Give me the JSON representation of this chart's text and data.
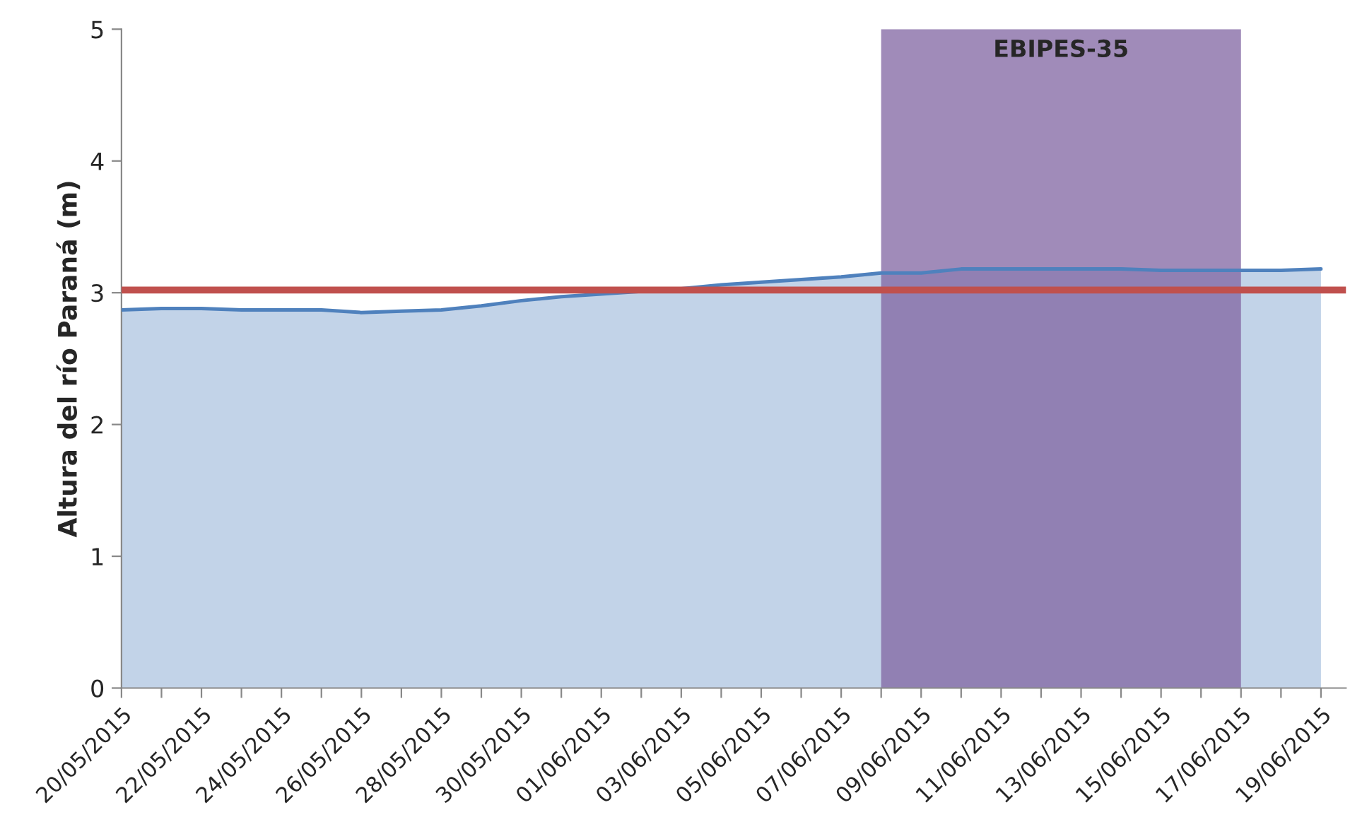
{
  "chart_data": {
    "type": "area",
    "ylabel": "Altura del río Paraná (m)",
    "x": [
      "2015-05-20",
      "2015-05-21",
      "2015-05-22",
      "2015-05-23",
      "2015-05-24",
      "2015-05-25",
      "2015-05-26",
      "2015-05-27",
      "2015-05-28",
      "2015-05-29",
      "2015-05-30",
      "2015-05-31",
      "2015-06-01",
      "2015-06-02",
      "2015-06-03",
      "2015-06-04",
      "2015-06-05",
      "2015-06-06",
      "2015-06-07",
      "2015-06-08",
      "2015-06-09",
      "2015-06-10",
      "2015-06-11",
      "2015-06-12",
      "2015-06-13",
      "2015-06-14",
      "2015-06-15",
      "2015-06-16",
      "2015-06-17",
      "2015-06-18",
      "2015-06-19"
    ],
    "series": [
      {
        "color": "#4f81bd",
        "values": [
          2.87,
          2.88,
          2.88,
          2.87,
          2.87,
          2.87,
          2.85,
          2.86,
          2.87,
          2.9,
          2.94,
          2.97,
          2.99,
          3.01,
          3.03,
          3.06,
          3.08,
          3.1,
          3.12,
          3.15,
          3.15,
          3.18,
          3.18,
          3.18,
          3.18,
          3.18,
          3.17,
          3.17,
          3.17,
          3.17,
          3.18
        ]
      }
    ],
    "xlim": [
      "2015-05-20",
      "2015-06-19T15:00"
    ],
    "xticks": [
      {
        "value": "2015-05-20",
        "label": "20/05/2015"
      },
      {
        "value": "2015-05-21",
        "label": null
      },
      {
        "value": "2015-05-22",
        "label": "22/05/2015"
      },
      {
        "value": "2015-05-23",
        "label": null
      },
      {
        "value": "2015-05-24",
        "label": "24/05/2015"
      },
      {
        "value": "2015-05-25",
        "label": null
      },
      {
        "value": "2015-05-26",
        "label": "26/05/2015"
      },
      {
        "value": "2015-05-27",
        "label": null
      },
      {
        "value": "2015-05-28",
        "label": "28/05/2015"
      },
      {
        "value": "2015-05-29",
        "label": null
      },
      {
        "value": "2015-05-30",
        "label": "30/05/2015"
      },
      {
        "value": "2015-05-31",
        "label": null
      },
      {
        "value": "2015-06-01",
        "label": "01/06/2015"
      },
      {
        "value": "2015-06-02",
        "label": null
      },
      {
        "value": "2015-06-03",
        "label": "03/06/2015"
      },
      {
        "value": "2015-06-04",
        "label": null
      },
      {
        "value": "2015-06-05",
        "label": "05/06/2015"
      },
      {
        "value": "2015-06-06",
        "label": null
      },
      {
        "value": "2015-06-07",
        "label": "07/06/2015"
      },
      {
        "value": "2015-06-08",
        "label": null
      },
      {
        "value": "2015-06-09",
        "label": "09/06/2015"
      },
      {
        "value": "2015-06-10",
        "label": null
      },
      {
        "value": "2015-06-11",
        "label": "11/06/2015"
      },
      {
        "value": "2015-06-12",
        "label": null
      },
      {
        "value": "2015-06-13",
        "label": "13/06/2015"
      },
      {
        "value": "2015-06-14",
        "label": null
      },
      {
        "value": "2015-06-15",
        "label": "15/06/2015"
      },
      {
        "value": "2015-06-16",
        "label": null
      },
      {
        "value": "2015-06-17",
        "label": "17/06/2015"
      },
      {
        "value": "2015-06-18",
        "label": null
      },
      {
        "value": "2015-06-19",
        "label": "19/06/2015"
      }
    ],
    "ylim": [
      0,
      5
    ],
    "yticks": [
      0,
      1,
      2,
      3,
      4,
      5
    ],
    "ref_lines": [
      {
        "axis": "y",
        "value": 3.02,
        "color": "#c0504d"
      }
    ],
    "bands": [
      {
        "axis": "x",
        "from": "2015-06-08",
        "to": "2015-06-17",
        "label": "EBIPES-35",
        "color": "#8064a2"
      }
    ],
    "grid": false,
    "legend": false
  }
}
